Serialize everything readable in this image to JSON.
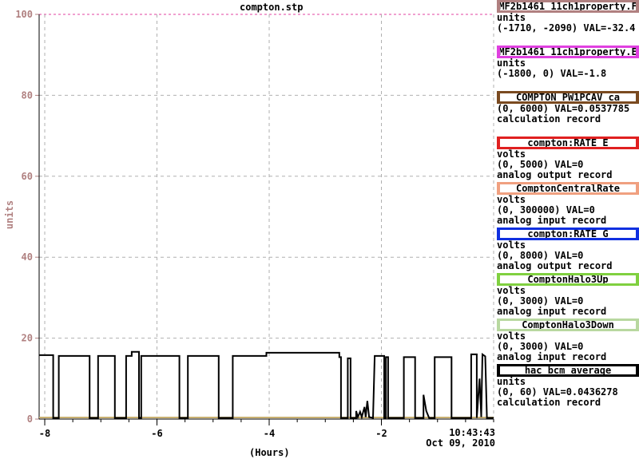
{
  "chart_data": {
    "type": "line",
    "title": "compton.stp",
    "ylabel": "units",
    "xlabel": "(Hours)",
    "xlim": [
      -8.1,
      0.0
    ],
    "ylim": [
      0,
      100
    ],
    "x_ticks": [
      -8,
      -6,
      -4,
      -2
    ],
    "x_tick_labels": [
      "-8",
      "-6",
      "-4",
      "-2"
    ],
    "y_ticks": [
      0,
      20,
      40,
      60,
      80,
      100
    ],
    "y_tick_labels": [
      "0",
      "20",
      "40",
      "60",
      "80",
      "100"
    ],
    "grid": true,
    "timestamp": "10:43:43",
    "date": "Oct 09, 2010",
    "series": [
      {
        "name": "hac_bcm_average",
        "color": "#000000",
        "points": [
          [
            -8.1,
            15.8
          ],
          [
            -7.85,
            15.8
          ],
          [
            -7.85,
            0.3
          ],
          [
            -7.75,
            0.3
          ],
          [
            -7.75,
            15.6
          ],
          [
            -7.2,
            15.6
          ],
          [
            -7.2,
            0.3
          ],
          [
            -7.05,
            0.3
          ],
          [
            -7.05,
            15.6
          ],
          [
            -6.75,
            15.6
          ],
          [
            -6.75,
            0.3
          ],
          [
            -6.55,
            0.3
          ],
          [
            -6.55,
            15.6
          ],
          [
            -6.45,
            15.6
          ],
          [
            -6.45,
            16.6
          ],
          [
            -6.32,
            16.6
          ],
          [
            -6.32,
            0.3
          ],
          [
            -6.28,
            0.3
          ],
          [
            -6.28,
            15.6
          ],
          [
            -5.6,
            15.6
          ],
          [
            -5.6,
            0.3
          ],
          [
            -5.45,
            0.3
          ],
          [
            -5.45,
            15.6
          ],
          [
            -4.9,
            15.6
          ],
          [
            -4.9,
            0.3
          ],
          [
            -4.65,
            0.3
          ],
          [
            -4.65,
            15.6
          ],
          [
            -4.05,
            15.6
          ],
          [
            -4.05,
            16.4
          ],
          [
            -2.75,
            16.4
          ],
          [
            -2.75,
            15.3
          ],
          [
            -2.72,
            15.3
          ],
          [
            -2.72,
            0.3
          ],
          [
            -2.6,
            0.3
          ],
          [
            -2.6,
            15.0
          ],
          [
            -2.55,
            15.0
          ],
          [
            -2.55,
            0.3
          ],
          [
            -2.45,
            0.3
          ],
          [
            -2.45,
            2.0
          ],
          [
            -2.42,
            0.5
          ],
          [
            -2.38,
            1.8
          ],
          [
            -2.35,
            0.5
          ],
          [
            -2.3,
            3.0
          ],
          [
            -2.28,
            0.5
          ],
          [
            -2.25,
            4.5
          ],
          [
            -2.22,
            0.5
          ],
          [
            -2.15,
            0.3
          ],
          [
            -2.12,
            15.6
          ],
          [
            -1.95,
            15.6
          ],
          [
            -1.95,
            0.3
          ],
          [
            -1.92,
            0.3
          ],
          [
            -1.92,
            15.3
          ],
          [
            -1.88,
            15.3
          ],
          [
            -1.88,
            0.3
          ],
          [
            -1.6,
            0.3
          ],
          [
            -1.6,
            15.3
          ],
          [
            -1.4,
            15.3
          ],
          [
            -1.4,
            0.3
          ],
          [
            -1.25,
            0.3
          ],
          [
            -1.25,
            6.0
          ],
          [
            -1.2,
            2.0
          ],
          [
            -1.15,
            0.3
          ],
          [
            -1.05,
            0.3
          ],
          [
            -1.05,
            15.3
          ],
          [
            -0.75,
            15.3
          ],
          [
            -0.75,
            0.3
          ],
          [
            -0.4,
            0.3
          ],
          [
            -0.4,
            16.0
          ],
          [
            -0.3,
            16.0
          ],
          [
            -0.3,
            0.3
          ],
          [
            -0.25,
            10.0
          ],
          [
            -0.22,
            0.5
          ],
          [
            -0.2,
            16.0
          ],
          [
            -0.15,
            15.5
          ],
          [
            -0.12,
            0.3
          ],
          [
            0.0,
            0.3
          ]
        ]
      },
      {
        "name": "CompTON_PW1PCAV_ca",
        "color": "#c8b070",
        "points": [
          [
            -8.1,
            0.4
          ],
          [
            0.0,
            0.4
          ]
        ]
      }
    ],
    "legend": [
      {
        "label": "MF2b1461_11ch1property.F",
        "color": "#b08080",
        "lines": [
          "units",
          "(-1710, -2090) VAL=-32.4"
        ]
      },
      {
        "label": "MF2b1461_11ch1property.E",
        "color": "#e040e0",
        "lines": [
          "units",
          "(-1800, 0)  VAL=-1.8"
        ]
      },
      {
        "label": "COMPTON_PW1PCAV_ca",
        "color": "#7a4a20",
        "lines": [
          "(0, 6000) VAL=0.0537785",
          "calculation record"
        ]
      },
      {
        "label": "compton:RATE_E",
        "color": "#e02020",
        "lines": [
          "volts",
          "(0, 5000)  VAL=0",
          "analog output record"
        ]
      },
      {
        "label": "ComptonCentralRate",
        "color": "#f0a080",
        "lines": [
          "volts",
          "(0, 300000) VAL=0",
          "analog input record"
        ]
      },
      {
        "label": "compton:RATE_G",
        "color": "#1030e0",
        "lines": [
          "volts",
          "(0, 8000)  VAL=0",
          "analog output record"
        ]
      },
      {
        "label": "ComptonHalo3Up",
        "color": "#80d040",
        "lines": [
          "volts",
          "(0, 3000)  VAL=0",
          "analog input record"
        ]
      },
      {
        "label": "ComptonHalo3Down",
        "color": "#b8d8a0",
        "lines": [
          "volts",
          "(0, 3000)  VAL=0",
          "analog input record"
        ]
      },
      {
        "label": "hac_bcm_average",
        "color": "#000000",
        "lines": [
          "units",
          "(0, 60) VAL=0.0436278",
          "calculation record"
        ]
      }
    ]
  }
}
